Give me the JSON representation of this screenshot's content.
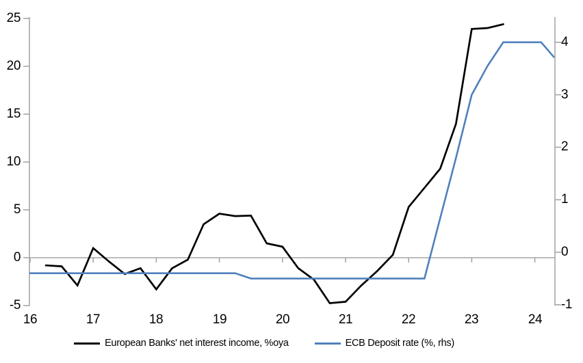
{
  "chart_data": {
    "type": "line",
    "title": "",
    "background": "#ffffff",
    "axis_color": "#a6a6a6",
    "grid": "zero-line-only",
    "legend_position": "bottom",
    "x_axis": {
      "ticks": [
        16,
        17,
        18,
        19,
        20,
        21,
        22,
        23,
        24
      ],
      "range": [
        16,
        24.4
      ]
    },
    "left_axis": {
      "ticks": [
        25,
        20,
        15,
        10,
        5,
        0,
        -5
      ],
      "range": [
        -5.4,
        25.2
      ]
    },
    "right_axis": {
      "ticks": [
        4,
        3,
        2,
        1,
        0,
        -1
      ],
      "range": [
        -1.05,
        4.5
      ]
    },
    "series": [
      {
        "name": "European Banks' net interest income, %oya",
        "axis": "left",
        "color": "#000000",
        "x": [
          16.25,
          16.5,
          16.75,
          17,
          17.25,
          17.5,
          17.75,
          18,
          18.25,
          18.5,
          18.75,
          19,
          19.25,
          19.5,
          19.75,
          20,
          20.25,
          20.5,
          20.75,
          21,
          21.25,
          21.5,
          21.75,
          22,
          22.25,
          22.5,
          22.75,
          23,
          23.25,
          23.5
        ],
        "values": [
          -0.8,
          -0.9,
          -2.9,
          1.0,
          -0.4,
          -1.7,
          -1.1,
          -3.3,
          -1.1,
          -0.2,
          3.5,
          4.6,
          4.35,
          4.4,
          1.5,
          1.15,
          -1.1,
          -2.3,
          -4.75,
          -4.6,
          -2.9,
          -1.4,
          0.3,
          5.3,
          7.3,
          9.3,
          14.0,
          23.9,
          24.0,
          24.4
        ]
      },
      {
        "name": "ECB Deposit rate (%, rhs)",
        "axis": "right",
        "color": "#4e80bc",
        "x": [
          16,
          16.25,
          16.5,
          16.75,
          17,
          17.25,
          17.5,
          17.75,
          18,
          18.25,
          18.5,
          18.75,
          19,
          19.25,
          19.5,
          19.75,
          20,
          20.25,
          20.5,
          20.75,
          21,
          21.25,
          21.5,
          21.75,
          22,
          22.25,
          22.5,
          22.75,
          23,
          23.25,
          23.5,
          23.75,
          24,
          24.1,
          24.3
        ],
        "values": [
          -0.4,
          -0.4,
          -0.4,
          -0.4,
          -0.4,
          -0.4,
          -0.4,
          -0.4,
          -0.4,
          -0.4,
          -0.4,
          -0.4,
          -0.4,
          -0.4,
          -0.5,
          -0.5,
          -0.5,
          -0.5,
          -0.5,
          -0.5,
          -0.5,
          -0.5,
          -0.5,
          -0.5,
          -0.5,
          -0.5,
          0.65,
          1.8,
          3.0,
          3.55,
          4.0,
          4.0,
          4.0,
          4.0,
          3.72
        ]
      }
    ]
  }
}
